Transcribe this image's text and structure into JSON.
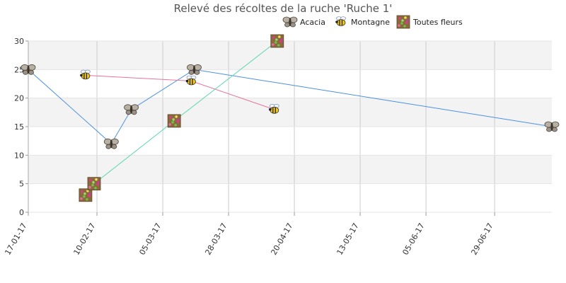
{
  "chart_data": {
    "type": "line",
    "title": "Relevé des récoltes de la ruche 'Ruche 1'",
    "x_tick_labels": [
      "17-01-17",
      "10-02-17",
      "05-03-17",
      "28-03-17",
      "20-04-17",
      "13-05-17",
      "05-06-17",
      "29-06-17"
    ],
    "x_tick_dates": [
      "2017-01-17",
      "2017-02-10",
      "2017-03-05",
      "2017-03-28",
      "2017-04-20",
      "2017-05-13",
      "2017-06-05",
      "2017-06-29"
    ],
    "xlim": [
      "2017-01-17",
      "2017-07-19"
    ],
    "ylim": [
      0,
      30
    ],
    "y_ticks": [
      0,
      5,
      10,
      15,
      20,
      25,
      30
    ],
    "grid": true,
    "legend_position": "top-right",
    "series": [
      {
        "name": "Acacia",
        "color": "#4a90e2",
        "marker": "moth-icon",
        "points": [
          {
            "x": "2017-01-17",
            "y": 25
          },
          {
            "x": "2017-02-15",
            "y": 12
          },
          {
            "x": "2017-02-22",
            "y": 18
          },
          {
            "x": "2017-03-16",
            "y": 25
          },
          {
            "x": "2017-07-19",
            "y": 15
          }
        ]
      },
      {
        "name": "Montagne",
        "color": "#e8739a",
        "marker": "bee-icon",
        "points": [
          {
            "x": "2017-02-06",
            "y": 24
          },
          {
            "x": "2017-03-15",
            "y": 23
          },
          {
            "x": "2017-04-13",
            "y": 18
          }
        ]
      },
      {
        "name": "Toutes fleurs",
        "color": "#5ad6b0",
        "marker": "flowers-icon",
        "points": [
          {
            "x": "2017-02-06",
            "y": 3
          },
          {
            "x": "2017-02-09",
            "y": 5
          },
          {
            "x": "2017-03-09",
            "y": 16
          },
          {
            "x": "2017-04-14",
            "y": 30
          }
        ]
      }
    ]
  }
}
